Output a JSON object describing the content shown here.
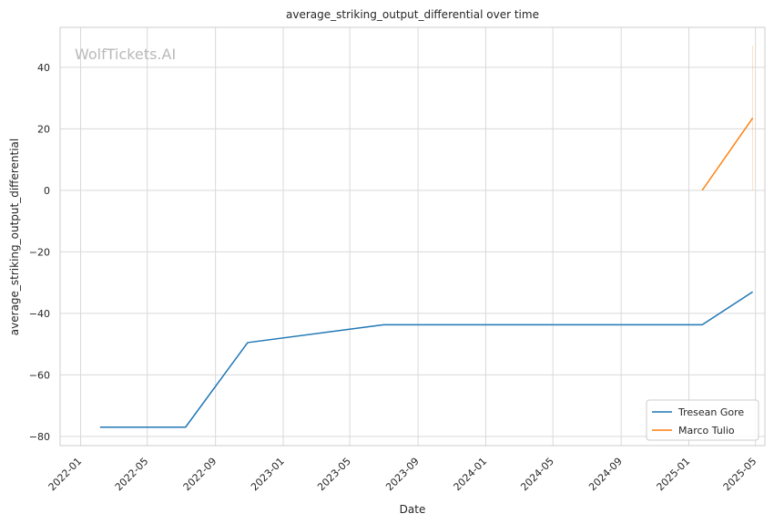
{
  "chart_data": {
    "type": "line",
    "title": "average_striking_output_differential over time",
    "xlabel": "Date",
    "ylabel": "average_striking_output_differential",
    "watermark": "WolfTickets.AI",
    "x_ticks": [
      "2022-01",
      "2022-05",
      "2022-09",
      "2023-01",
      "2023-05",
      "2023-09",
      "2024-01",
      "2024-05",
      "2024-09",
      "2025-01",
      "2025-05"
    ],
    "y_ticks": [
      -80,
      -60,
      -40,
      -20,
      0,
      20,
      40
    ],
    "xlim": [
      "2021-11-25",
      "2025-05-18"
    ],
    "ylim": [
      -83,
      53
    ],
    "grid": true,
    "legend_position": "lower-right",
    "series": [
      {
        "name": "Tresean Gore",
        "color": "#1f77b4",
        "points": [
          {
            "x": "2022-02-05",
            "y": -77
          },
          {
            "x": "2022-07-09",
            "y": -77
          },
          {
            "x": "2022-10-29",
            "y": -49.5
          },
          {
            "x": "2023-07-01",
            "y": -43.7
          },
          {
            "x": "2025-01-25",
            "y": -43.7
          },
          {
            "x": "2025-04-26",
            "y": -33
          }
        ]
      },
      {
        "name": "Marco Tulio",
        "color": "#ff7f0e",
        "points": [
          {
            "x": "2025-01-25",
            "y": 0
          },
          {
            "x": "2025-04-26",
            "y": 23.5
          }
        ],
        "band": {
          "x": "2025-04-26",
          "low": 0,
          "high": 47
        }
      }
    ]
  }
}
